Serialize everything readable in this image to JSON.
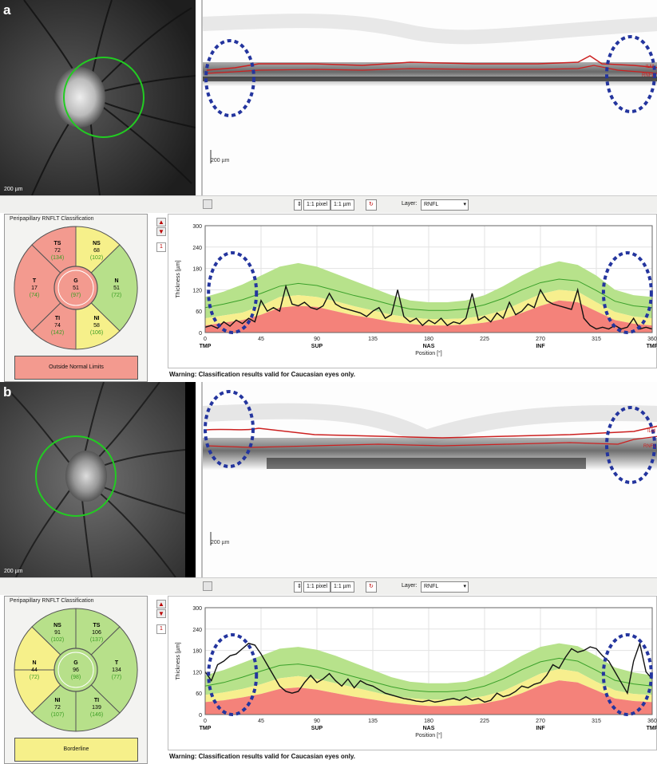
{
  "colors": {
    "ring": "#22cc22",
    "rnfl_line": "#cc2020",
    "ellipse": "#24359e",
    "outside_normal": "#f39a8f",
    "borderline": "#f6f08a",
    "within_normal": "#b7e08a",
    "band_green": "#b7e28b",
    "band_yellow": "#f7ef8e",
    "band_red": "#f4827a"
  },
  "panels": [
    {
      "letter": "a",
      "fundus_scale": "200 µm",
      "bscan_scale": "200 µm",
      "bscan_label_ilm": "ILM",
      "bscan_label_rnfl": "RNFL",
      "toolbar": {
        "pixel_btn": "1:1 pixel",
        "um_btn": "1:1 µm",
        "layer_label": "Layer:",
        "layer_value": "RNFL"
      },
      "classification_title": "Peripapillary RNFLT Classification",
      "sectors": [
        {
          "name": "TS",
          "value": "72",
          "normal": "(134)",
          "status": "outside"
        },
        {
          "name": "NS",
          "value": "68",
          "normal": "(102)",
          "status": "borderline"
        },
        {
          "name": "N",
          "value": "51",
          "normal": "(72)",
          "status": "within"
        },
        {
          "name": "NI",
          "value": "58",
          "normal": "(106)",
          "status": "borderline"
        },
        {
          "name": "TI",
          "value": "74",
          "normal": "(142)",
          "status": "outside"
        },
        {
          "name": "T",
          "value": "17",
          "normal": "(74)",
          "status": "outside"
        },
        {
          "name": "G",
          "value": "51",
          "normal": "(97)",
          "status": "outside"
        }
      ],
      "overall_status": "Outside Normal Limits",
      "page_number": "1",
      "warning": "Warning: Classification results valid for Caucasian eyes only."
    },
    {
      "letter": "b",
      "fundus_scale": "200 µm",
      "bscan_scale": "200 µm",
      "bscan_label_ilm": "ILM",
      "bscan_label_rnfl": "RNFL",
      "toolbar": {
        "pixel_btn": "1:1 pixel",
        "um_btn": "1:1 µm",
        "layer_label": "Layer:",
        "layer_value": "RNFL"
      },
      "classification_title": "Peripapillary RNFLT Classification",
      "sectors": [
        {
          "name": "NS",
          "value": "91",
          "normal": "(102)",
          "status": "within"
        },
        {
          "name": "TS",
          "value": "106",
          "normal": "(137)",
          "status": "within"
        },
        {
          "name": "T",
          "value": "134",
          "normal": "(77)",
          "status": "within"
        },
        {
          "name": "TI",
          "value": "139",
          "normal": "(146)",
          "status": "within"
        },
        {
          "name": "NI",
          "value": "72",
          "normal": "(107)",
          "status": "within"
        },
        {
          "name": "N",
          "value": "44",
          "normal": "(72)",
          "status": "borderline"
        },
        {
          "name": "G",
          "value": "96",
          "normal": "(98)",
          "status": "within"
        }
      ],
      "overall_status": "Borderline",
      "page_number": "1",
      "warning": "Warning: Classification results valid for Caucasian eyes only."
    }
  ],
  "chart_data": [
    {
      "type": "line",
      "ylabel": "Thickness [µm]",
      "xlabel": "Position [°]",
      "ylim": [
        0,
        300
      ],
      "xlim": [
        0,
        360
      ],
      "yticks": [
        "0",
        "60",
        "120",
        "180",
        "240",
        "300"
      ],
      "xticks": [
        "0",
        "45",
        "90",
        "135",
        "180",
        "225",
        "270",
        "315",
        "360"
      ],
      "xtick_sublabels": [
        "TMP",
        "",
        "SUP",
        "",
        "NAS",
        "",
        "INF",
        "",
        "TMP"
      ],
      "bands": {
        "x": [
          0,
          15,
          30,
          45,
          60,
          75,
          90,
          105,
          120,
          135,
          150,
          165,
          180,
          195,
          210,
          225,
          240,
          255,
          270,
          285,
          300,
          315,
          330,
          345,
          360
        ],
        "red_top": [
          20,
          28,
          35,
          50,
          70,
          75,
          72,
          60,
          48,
          40,
          30,
          24,
          20,
          20,
          22,
          28,
          38,
          55,
          75,
          90,
          85,
          60,
          35,
          25,
          20
        ],
        "yellow_top": [
          40,
          48,
          56,
          75,
          100,
          105,
          100,
          88,
          74,
          62,
          50,
          42,
          38,
          38,
          40,
          48,
          62,
          85,
          108,
          120,
          115,
          85,
          58,
          45,
          40
        ],
        "green_top": [
          100,
          115,
          135,
          160,
          185,
          195,
          185,
          165,
          145,
          125,
          105,
          90,
          85,
          85,
          90,
          105,
          130,
          160,
          185,
          200,
          190,
          160,
          120,
          105,
          100
        ],
        "mean": [
          70,
          80,
          92,
          110,
          130,
          138,
          132,
          118,
          104,
          92,
          78,
          66,
          62,
          62,
          66,
          78,
          96,
          120,
          140,
          150,
          145,
          118,
          88,
          75,
          70
        ]
      },
      "series": [
        {
          "x": [
            0,
            5,
            10,
            15,
            20,
            25,
            30,
            35,
            40,
            45,
            50,
            55,
            60,
            65,
            70,
            75,
            80,
            85,
            90,
            95,
            100,
            105,
            110,
            115,
            120,
            125,
            130,
            135,
            140,
            145,
            150,
            155,
            160,
            165,
            170,
            175,
            180,
            185,
            190,
            195,
            200,
            205,
            210,
            215,
            220,
            225,
            230,
            235,
            240,
            245,
            250,
            255,
            260,
            265,
            270,
            275,
            280,
            285,
            290,
            295,
            300,
            305,
            310,
            315,
            320,
            325,
            330,
            335,
            340,
            345,
            350,
            355,
            360
          ],
          "values": [
            15,
            20,
            12,
            30,
            18,
            35,
            25,
            40,
            30,
            90,
            60,
            70,
            60,
            130,
            80,
            75,
            85,
            70,
            65,
            75,
            110,
            80,
            70,
            65,
            60,
            55,
            45,
            60,
            70,
            40,
            50,
            120,
            45,
            30,
            40,
            20,
            35,
            25,
            40,
            20,
            30,
            25,
            40,
            110,
            35,
            45,
            30,
            55,
            40,
            85,
            50,
            60,
            80,
            70,
            120,
            90,
            80,
            75,
            70,
            65,
            120,
            40,
            20,
            10,
            15,
            10,
            20,
            10,
            15,
            40,
            10,
            15,
            10
          ]
        }
      ]
    },
    {
      "type": "line",
      "ylabel": "Thickness [µm]",
      "xlabel": "Position [°]",
      "ylim": [
        0,
        300
      ],
      "xlim": [
        0,
        360
      ],
      "yticks": [
        "0",
        "60",
        "120",
        "180",
        "240",
        "300"
      ],
      "xticks": [
        "0",
        "45",
        "90",
        "135",
        "180",
        "225",
        "270",
        "315",
        "360"
      ],
      "xtick_sublabels": [
        "TMP",
        "",
        "SUP",
        "",
        "NAS",
        "",
        "INF",
        "",
        "TMP"
      ],
      "bands": {
        "x": [
          0,
          15,
          30,
          45,
          60,
          75,
          90,
          105,
          120,
          135,
          150,
          165,
          180,
          195,
          210,
          225,
          240,
          255,
          270,
          285,
          300,
          315,
          330,
          345,
          360
        ],
        "red_top": [
          35,
          40,
          48,
          58,
          72,
          76,
          70,
          60,
          50,
          42,
          34,
          28,
          24,
          24,
          26,
          32,
          42,
          60,
          82,
          96,
          90,
          68,
          45,
          38,
          35
        ],
        "yellow_top": [
          55,
          62,
          72,
          85,
          102,
          108,
          100,
          88,
          76,
          64,
          52,
          46,
          42,
          42,
          44,
          52,
          66,
          90,
          115,
          128,
          120,
          92,
          68,
          58,
          55
        ],
        "green_top": [
          110,
          125,
          145,
          165,
          185,
          190,
          182,
          165,
          145,
          125,
          105,
          92,
          88,
          88,
          92,
          108,
          135,
          165,
          190,
          200,
          192,
          165,
          132,
          118,
          110
        ],
        "mean": [
          80,
          90,
          105,
          122,
          138,
          142,
          134,
          120,
          106,
          92,
          78,
          68,
          64,
          64,
          68,
          80,
          100,
          126,
          148,
          158,
          150,
          124,
          96,
          86,
          80
        ]
      },
      "series": [
        {
          "x": [
            0,
            5,
            10,
            15,
            20,
            25,
            30,
            35,
            40,
            45,
            50,
            55,
            60,
            65,
            70,
            75,
            80,
            85,
            90,
            95,
            100,
            105,
            110,
            115,
            120,
            125,
            130,
            135,
            140,
            145,
            150,
            155,
            160,
            165,
            170,
            175,
            180,
            185,
            190,
            195,
            200,
            205,
            210,
            215,
            220,
            225,
            230,
            235,
            240,
            245,
            250,
            255,
            260,
            265,
            270,
            275,
            280,
            285,
            290,
            295,
            300,
            305,
            310,
            315,
            320,
            325,
            330,
            335,
            340,
            345,
            350,
            355,
            360
          ],
          "values": [
            120,
            95,
            140,
            150,
            165,
            170,
            185,
            200,
            195,
            170,
            140,
            110,
            80,
            65,
            60,
            65,
            90,
            110,
            90,
            100,
            115,
            95,
            80,
            100,
            75,
            95,
            85,
            80,
            70,
            60,
            55,
            50,
            45,
            42,
            38,
            36,
            40,
            35,
            38,
            42,
            45,
            40,
            50,
            40,
            45,
            35,
            40,
            60,
            50,
            55,
            65,
            80,
            75,
            85,
            90,
            110,
            140,
            130,
            160,
            185,
            175,
            180,
            190,
            185,
            165,
            150,
            120,
            90,
            60,
            150,
            200,
            120,
            100
          ]
        }
      ]
    }
  ]
}
